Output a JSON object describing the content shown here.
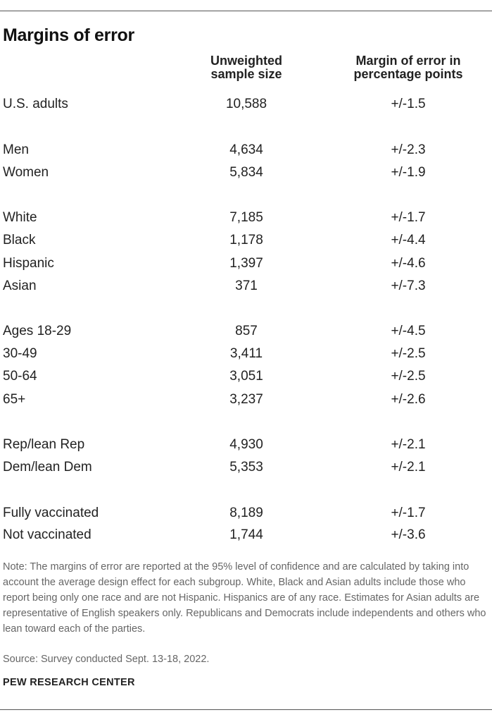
{
  "title": "Margins of error",
  "header": {
    "sample_size": [
      "Unweighted",
      "sample size"
    ],
    "margin": [
      "Margin of error in",
      "percentage points"
    ]
  },
  "rows": [
    {
      "label": "U.S. adults",
      "n": "10,588",
      "moe": "+/-1.5"
    },
    {
      "label": "Men",
      "n": "4,634",
      "moe": "+/-2.3"
    },
    {
      "label": "Women",
      "n": "5,834",
      "moe": "+/-1.9"
    },
    {
      "label": "White",
      "n": "7,185",
      "moe": "+/-1.7"
    },
    {
      "label": "Black",
      "n": "1,178",
      "moe": "+/-4.4"
    },
    {
      "label": "Hispanic",
      "n": "1,397",
      "moe": "+/-4.6"
    },
    {
      "label": "Asian",
      "n": "371",
      "moe": "+/-7.3"
    },
    {
      "label": "Ages 18-29",
      "n": "857",
      "moe": "+/-4.5"
    },
    {
      "label": "30-49",
      "n": "3,411",
      "moe": "+/-2.5"
    },
    {
      "label": "50-64",
      "n": "3,051",
      "moe": "+/-2.5"
    },
    {
      "label": "65+",
      "n": "3,237",
      "moe": "+/-2.6"
    },
    {
      "label": "Rep/lean Rep",
      "n": "4,930",
      "moe": "+/-2.1"
    },
    {
      "label": "Dem/lean Dem",
      "n": "5,353",
      "moe": "+/-2.1"
    },
    {
      "label": "Fully vaccinated",
      "n": "8,189",
      "moe": "+/-1.7"
    },
    {
      "label": "Not vaccinated",
      "n": "1,744",
      "moe": "+/-3.6"
    }
  ],
  "note": "Note: The margins of error are reported at the 95% level of confidence and are calculated by taking into account the average design effect for each subgroup. White, Black and Asian adults include those who report being only one race and are not Hispanic. Hispanics are of any race. Estimates for Asian adults are representative of English speakers only. Republicans and Democrats include independents and others who lean toward each of the parties.",
  "source": "Source: Survey conducted Sept. 13-18, 2022.",
  "brand": "PEW RESEARCH CENTER"
}
